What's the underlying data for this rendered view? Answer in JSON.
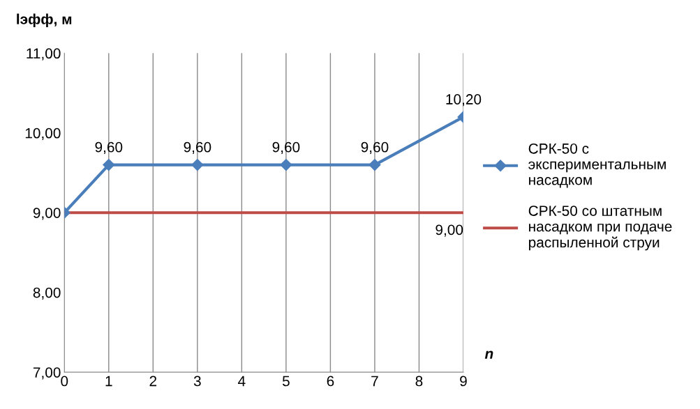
{
  "chart_data": {
    "type": "line",
    "xlabel": "n",
    "ylabel": "lэфф, м",
    "xlim": [
      0,
      9
    ],
    "xticks": [
      0,
      1,
      2,
      3,
      4,
      5,
      6,
      7,
      8,
      9
    ],
    "ylim": [
      7,
      11
    ],
    "yticks": [
      {
        "value": 7,
        "label": "7,00"
      },
      {
        "value": 8,
        "label": "8,00"
      },
      {
        "value": 9,
        "label": "9,00"
      },
      {
        "value": 10,
        "label": "10,00"
      },
      {
        "value": 11,
        "label": "11,00"
      }
    ],
    "grid": "x",
    "legend": "right",
    "series": [
      {
        "name": "СРК-50 с\nэкспериментальным\nнасадком",
        "color": "#4a7ebb",
        "marker": "diamond",
        "x": [
          0,
          1,
          3,
          5,
          7,
          9
        ],
        "values": [
          9.0,
          9.6,
          9.6,
          9.6,
          9.6,
          10.2
        ],
        "value_labels": [
          null,
          "9,60",
          "9,60",
          "9,60",
          "9,60",
          "10,20"
        ]
      },
      {
        "name": "СРК-50 со штатным\nнасадком при подаче\nраспыленной струи",
        "color": "#be4b48",
        "marker": "none",
        "x": [
          0,
          9
        ],
        "values": [
          9.0,
          9.0
        ],
        "value_labels": [
          null,
          "9,00"
        ]
      }
    ]
  }
}
